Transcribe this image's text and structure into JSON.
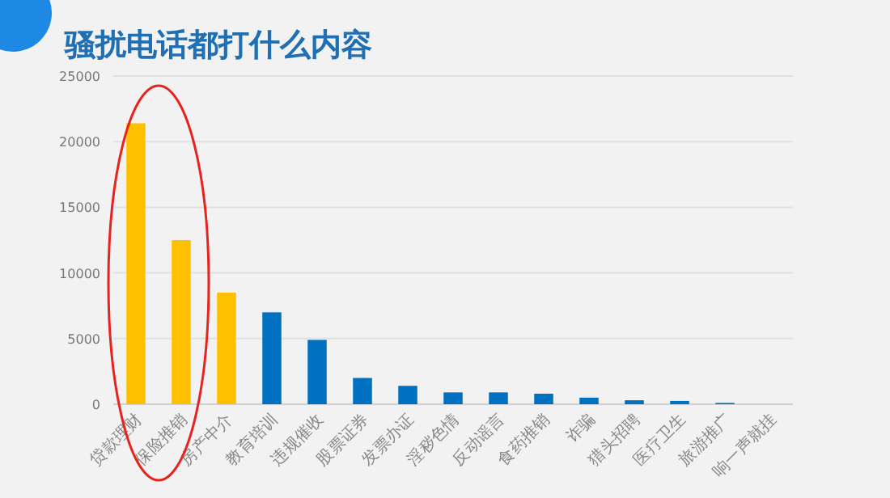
{
  "chart_data": {
    "type": "bar",
    "title": "骚扰电话都打什么内容",
    "categories": [
      "贷款理财",
      "保险推销",
      "房产中介",
      "教育培训",
      "违规催收",
      "股票证券",
      "发票办证",
      "淫秽色情",
      "反动谣言",
      "食药推销",
      "诈骗",
      "猎头招聘",
      "医疗卫生",
      "旅游推广",
      "响一声就挂"
    ],
    "values": [
      21400,
      12500,
      8500,
      7000,
      4900,
      2000,
      1400,
      900,
      900,
      800,
      500,
      300,
      250,
      100,
      0
    ],
    "colors": [
      "#ffc000",
      "#ffc000",
      "#ffc000",
      "#0070c0",
      "#0070c0",
      "#0070c0",
      "#0070c0",
      "#0070c0",
      "#0070c0",
      "#0070c0",
      "#0070c0",
      "#0070c0",
      "#0070c0",
      "#0070c0",
      "#0070c0"
    ],
    "ylim": [
      0,
      25000
    ],
    "yticks": [
      0,
      5000,
      10000,
      15000,
      20000,
      25000
    ],
    "grid": "y"
  }
}
